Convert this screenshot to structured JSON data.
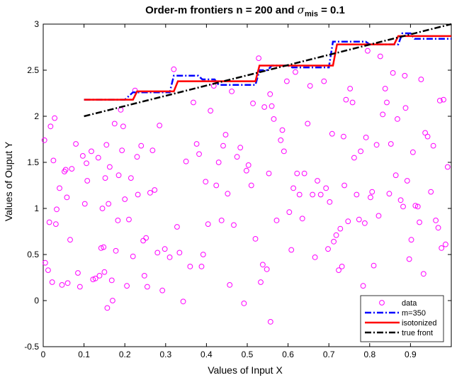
{
  "chart_data": {
    "type": "scatter",
    "title": {
      "main": "Order-m frontiers n = 200 and ",
      "sigma": "σ",
      "sub": "mis",
      "rest": " = 0.1"
    },
    "xlabel": "Values of Input X",
    "ylabel": "Values of Ouput Y",
    "xlim": [
      0,
      1
    ],
    "ylim": [
      -0.5,
      3
    ],
    "xticks": [
      0,
      0.1,
      0.2,
      0.3,
      0.4,
      0.5,
      0.6,
      0.7,
      0.8,
      0.9
    ],
    "xtick_labels": [
      "0",
      "0.1",
      "0.2",
      "0.3",
      "0.4",
      "0.5",
      "0.6",
      "0.7",
      "0.8",
      "0.9"
    ],
    "yticks": [
      -0.5,
      0,
      0.5,
      1,
      1.5,
      2,
      2.5,
      3
    ],
    "ytick_labels": [
      "-0.5",
      "0",
      "0.5",
      "1",
      "1.5",
      "2",
      "2.5",
      "3"
    ],
    "grid": false,
    "legend_placement": "bottom-right",
    "colors": {
      "data": "#ff00ff",
      "m350": "#0000ff",
      "isotonized": "#ff0000",
      "true_front": "#000000"
    },
    "series": [
      {
        "name": "data",
        "kind": "scatter",
        "points": [
          [
            0.003,
            1.74
          ],
          [
            0.005,
            0.41
          ],
          [
            0.012,
            0.33
          ],
          [
            0.015,
            0.85
          ],
          [
            0.018,
            1.89
          ],
          [
            0.022,
            0.2
          ],
          [
            0.025,
            1.52
          ],
          [
            0.028,
            1.98
          ],
          [
            0.031,
            0.83
          ],
          [
            0.033,
            0.99
          ],
          [
            0.04,
            1.22
          ],
          [
            0.046,
            0.17
          ],
          [
            0.052,
            1.4
          ],
          [
            0.055,
            1.42
          ],
          [
            0.058,
            1.12
          ],
          [
            0.06,
            0.19
          ],
          [
            0.066,
            0.66
          ],
          [
            0.07,
            1.43
          ],
          [
            0.08,
            1.7
          ],
          [
            0.085,
            0.3
          ],
          [
            0.09,
            0.15
          ],
          [
            0.097,
            1.57
          ],
          [
            0.102,
            1.05
          ],
          [
            0.106,
            1.49
          ],
          [
            0.108,
            1.3
          ],
          [
            0.118,
            1.62
          ],
          [
            0.122,
            0.23
          ],
          [
            0.128,
            0.24
          ],
          [
            0.135,
            1.55
          ],
          [
            0.138,
            0.27
          ],
          [
            0.142,
            0.57
          ],
          [
            0.145,
            1.0
          ],
          [
            0.148,
            0.58
          ],
          [
            0.15,
            0.31
          ],
          [
            0.152,
            1.33
          ],
          [
            0.155,
            1.69
          ],
          [
            0.157,
            -0.08
          ],
          [
            0.16,
            1.05
          ],
          [
            0.163,
            1.45
          ],
          [
            0.168,
            0.22
          ],
          [
            0.17,
            0.0
          ],
          [
            0.175,
            1.92
          ],
          [
            0.178,
            0.54
          ],
          [
            0.183,
            0.87
          ],
          [
            0.185,
            1.36
          ],
          [
            0.19,
            2.07
          ],
          [
            0.193,
            1.63
          ],
          [
            0.196,
            1.89
          ],
          [
            0.2,
            1.1
          ],
          [
            0.205,
            0.16
          ],
          [
            0.21,
            0.88
          ],
          [
            0.215,
            1.33
          ],
          [
            0.22,
            0.48
          ],
          [
            0.225,
            2.28
          ],
          [
            0.23,
            1.56
          ],
          [
            0.232,
            1.15
          ],
          [
            0.24,
            1.68
          ],
          [
            0.245,
            0.65
          ],
          [
            0.248,
            0.27
          ],
          [
            0.252,
            0.68
          ],
          [
            0.255,
            0.15
          ],
          [
            0.262,
            1.17
          ],
          [
            0.268,
            1.63
          ],
          [
            0.273,
            1.2
          ],
          [
            0.28,
            0.52
          ],
          [
            0.285,
            1.9
          ],
          [
            0.292,
            0.11
          ],
          [
            0.298,
            0.56
          ],
          [
            0.31,
            0.47
          ],
          [
            0.32,
            2.51
          ],
          [
            0.328,
            0.8
          ],
          [
            0.334,
            0.52
          ],
          [
            0.343,
            -0.01
          ],
          [
            0.35,
            1.51
          ],
          [
            0.36,
            0.37
          ],
          [
            0.368,
            2.15
          ],
          [
            0.376,
            1.7
          ],
          [
            0.382,
            1.59
          ],
          [
            0.388,
            0.37
          ],
          [
            0.392,
            0.5
          ],
          [
            0.398,
            1.29
          ],
          [
            0.404,
            0.83
          ],
          [
            0.41,
            2.06
          ],
          [
            0.418,
            2.33
          ],
          [
            0.424,
            1.25
          ],
          [
            0.43,
            1.5
          ],
          [
            0.437,
            0.87
          ],
          [
            0.441,
            1.68
          ],
          [
            0.447,
            1.8
          ],
          [
            0.452,
            1.16
          ],
          [
            0.457,
            0.17
          ],
          [
            0.462,
            2.27
          ],
          [
            0.467,
            0.82
          ],
          [
            0.475,
            1.56
          ],
          [
            0.483,
            1.66
          ],
          [
            0.492,
            -0.03
          ],
          [
            0.498,
            1.41
          ],
          [
            0.503,
            1.47
          ],
          [
            0.51,
            1.25
          ],
          [
            0.514,
            2.14
          ],
          [
            0.52,
            0.67
          ],
          [
            0.528,
            2.63
          ],
          [
            0.533,
            0.2
          ],
          [
            0.538,
            0.39
          ],
          [
            0.542,
            2.1
          ],
          [
            0.548,
            0.34
          ],
          [
            0.553,
            1.38
          ],
          [
            0.556,
            2.24
          ],
          [
            0.557,
            -0.23
          ],
          [
            0.56,
            2.11
          ],
          [
            0.565,
            1.97
          ],
          [
            0.572,
            0.87
          ],
          [
            0.582,
            1.74
          ],
          [
            0.586,
            1.85
          ],
          [
            0.59,
            1.62
          ],
          [
            0.597,
            2.38
          ],
          [
            0.603,
            0.96
          ],
          [
            0.608,
            0.55
          ],
          [
            0.613,
            1.22
          ],
          [
            0.618,
            2.48
          ],
          [
            0.622,
            1.38
          ],
          [
            0.628,
            1.15
          ],
          [
            0.635,
            0.89
          ],
          [
            0.64,
            1.38
          ],
          [
            0.648,
            1.92
          ],
          [
            0.654,
            2.33
          ],
          [
            0.66,
            1.15
          ],
          [
            0.666,
            0.47
          ],
          [
            0.672,
            1.3
          ],
          [
            0.68,
            1.15
          ],
          [
            0.688,
            2.38
          ],
          [
            0.693,
            1.22
          ],
          [
            0.698,
            0.56
          ],
          [
            0.702,
            1.07
          ],
          [
            0.708,
            1.81
          ],
          [
            0.712,
            0.64
          ],
          [
            0.718,
            0.71
          ],
          [
            0.724,
            0.33
          ],
          [
            0.728,
            0.78
          ],
          [
            0.732,
            0.37
          ],
          [
            0.736,
            1.78
          ],
          [
            0.738,
            1.25
          ],
          [
            0.742,
            2.18
          ],
          [
            0.747,
            0.86
          ],
          [
            0.752,
            2.3
          ],
          [
            0.758,
            2.15
          ],
          [
            0.762,
            1.55
          ],
          [
            0.768,
            1.15
          ],
          [
            0.774,
            0.88
          ],
          [
            0.778,
            1.62
          ],
          [
            0.784,
            0.16
          ],
          [
            0.788,
            0.84
          ],
          [
            0.791,
            1.77
          ],
          [
            0.795,
            2.71
          ],
          [
            0.802,
            1.12
          ],
          [
            0.806,
            1.18
          ],
          [
            0.81,
            0.38
          ],
          [
            0.817,
            1.69
          ],
          [
            0.822,
            0.92
          ],
          [
            0.826,
            2.65
          ],
          [
            0.832,
            2.02
          ],
          [
            0.838,
            2.3
          ],
          [
            0.842,
            2.15
          ],
          [
            0.848,
            1.16
          ],
          [
            0.852,
            1.7
          ],
          [
            0.857,
            2.47
          ],
          [
            0.864,
            1.36
          ],
          [
            0.868,
            1.97
          ],
          [
            0.876,
            1.09
          ],
          [
            0.882,
            1.02
          ],
          [
            0.886,
            2.44
          ],
          [
            0.888,
            2.09
          ],
          [
            0.892,
            1.3
          ],
          [
            0.897,
            0.45
          ],
          [
            0.902,
            0.66
          ],
          [
            0.906,
            1.61
          ],
          [
            0.912,
            1.03
          ],
          [
            0.918,
            1.02
          ],
          [
            0.922,
            0.85
          ],
          [
            0.926,
            2.4
          ],
          [
            0.932,
            0.29
          ],
          [
            0.936,
            1.82
          ],
          [
            0.942,
            1.78
          ],
          [
            0.95,
            1.18
          ],
          [
            0.956,
            1.68
          ],
          [
            0.962,
            0.87
          ],
          [
            0.968,
            0.79
          ],
          [
            0.972,
            2.17
          ],
          [
            0.976,
            0.57
          ],
          [
            0.981,
            2.18
          ],
          [
            0.986,
            0.61
          ],
          [
            0.991,
            1.45
          ]
        ]
      },
      {
        "name": "m=350",
        "kind": "step",
        "points": [
          [
            0.1,
            2.18
          ],
          [
            0.2,
            2.18
          ],
          [
            0.22,
            2.26
          ],
          [
            0.31,
            2.26
          ],
          [
            0.32,
            2.44
          ],
          [
            0.38,
            2.44
          ],
          [
            0.39,
            2.4
          ],
          [
            0.42,
            2.4
          ],
          [
            0.43,
            2.34
          ],
          [
            0.52,
            2.34
          ],
          [
            0.53,
            2.5
          ],
          [
            0.55,
            2.5
          ],
          [
            0.56,
            2.55
          ],
          [
            0.6,
            2.55
          ],
          [
            0.61,
            2.53
          ],
          [
            0.7,
            2.53
          ],
          [
            0.71,
            2.81
          ],
          [
            0.79,
            2.81
          ],
          [
            0.8,
            2.78
          ],
          [
            0.87,
            2.78
          ],
          [
            0.88,
            2.9
          ],
          [
            0.9,
            2.9
          ],
          [
            0.91,
            2.84
          ],
          [
            1.0,
            2.84
          ]
        ]
      },
      {
        "name": "isotonized",
        "kind": "step",
        "points": [
          [
            0.1,
            2.18
          ],
          [
            0.22,
            2.18
          ],
          [
            0.23,
            2.27
          ],
          [
            0.32,
            2.27
          ],
          [
            0.33,
            2.38
          ],
          [
            0.52,
            2.38
          ],
          [
            0.53,
            2.55
          ],
          [
            0.71,
            2.55
          ],
          [
            0.72,
            2.78
          ],
          [
            0.86,
            2.78
          ],
          [
            0.87,
            2.87
          ],
          [
            1.0,
            2.87
          ]
        ]
      },
      {
        "name": "true front",
        "kind": "line",
        "points": [
          [
            0.1,
            2.0
          ],
          [
            1.0,
            3.0
          ]
        ]
      }
    ]
  }
}
